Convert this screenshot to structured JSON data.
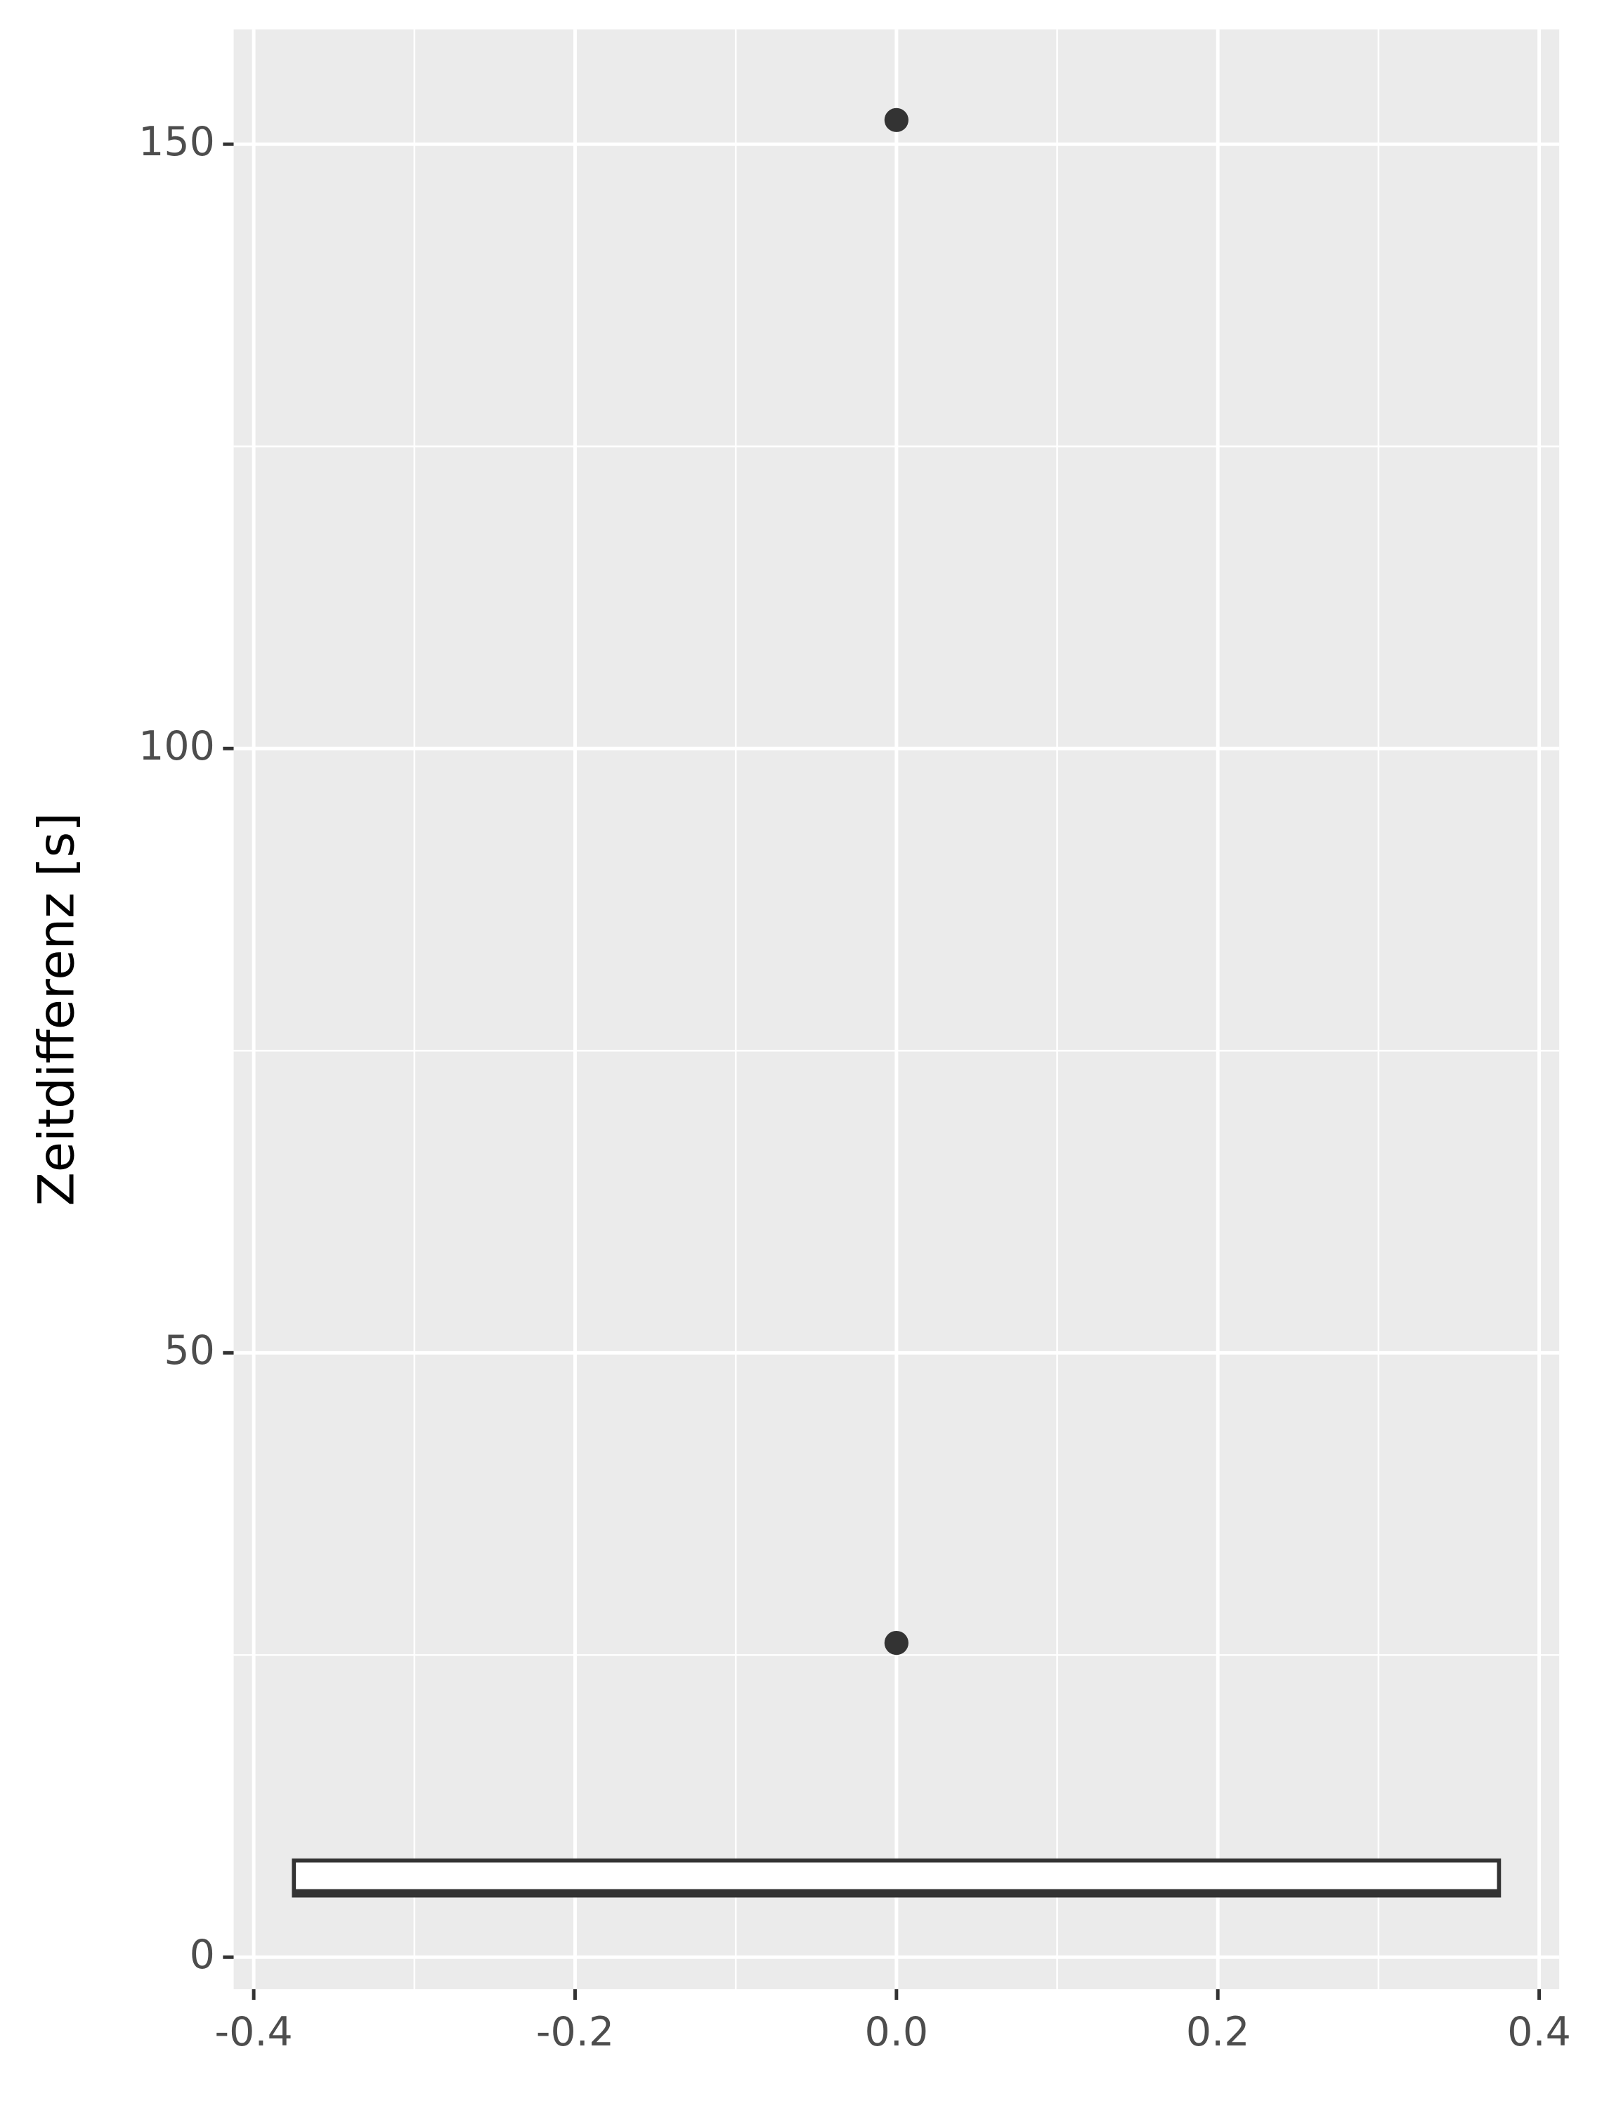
{
  "chart_data": {
    "type": "box",
    "y_label": "Zeitdifferenz [s]",
    "xlim": [
      -0.4125,
      0.4125
    ],
    "xticks": [
      -0.4,
      -0.2,
      {
        "value": 0,
        "label": "0.0"
      },
      0.2,
      0.4
    ],
    "x_minor_ticks": [
      -0.3,
      -0.1,
      0.1,
      0.3
    ],
    "ylim": [
      -2.65,
      159.5
    ],
    "yticks": [
      0,
      50,
      100,
      150
    ],
    "y_minor_ticks": [
      25,
      75,
      125
    ],
    "grid": true,
    "color": "#333333",
    "fill": "#ffffff",
    "boxes": [
      {
        "x": 0,
        "width": 0.75,
        "whisker_low": 5,
        "q1": 5.1,
        "median": 5.3,
        "q3": 8,
        "whisker_high": 8,
        "outliers": [
          26,
          152
        ]
      }
    ]
  }
}
